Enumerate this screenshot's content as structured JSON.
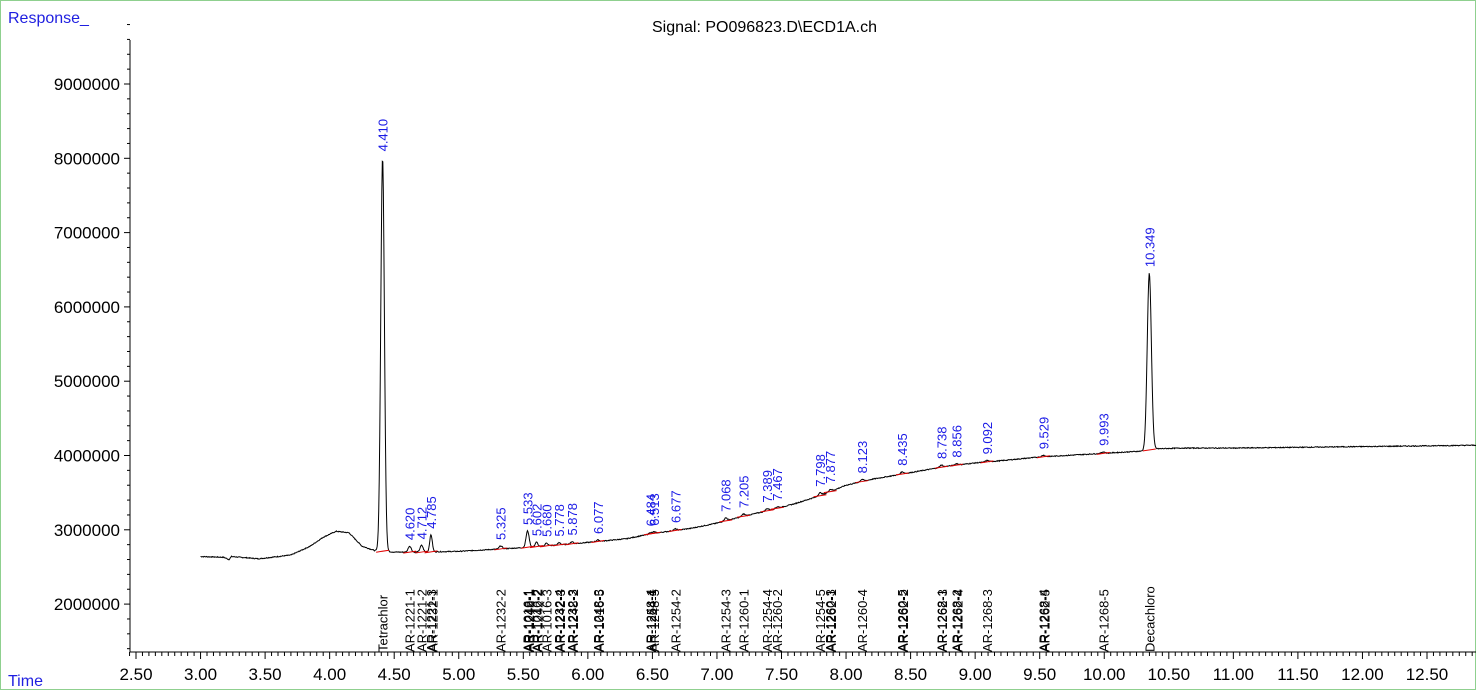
{
  "header": {
    "response_label": "Response_",
    "signal_label": "Signal: PO096823.D\\ECD1A.ch",
    "time_label": "Time"
  },
  "colors": {
    "trace": "#000000",
    "peak_label": "#1a1ae6",
    "baseline_marker": "#e00000",
    "axis_label": "#1f1fe0",
    "frame": "#8fd08f"
  },
  "chart_data": {
    "type": "line",
    "title": "Signal: PO096823.D\\ECD1A.ch",
    "xlabel": "Time",
    "ylabel": "Response_",
    "xlim": [
      2.4,
      12.95
    ],
    "ylim": [
      1320000,
      9900000
    ],
    "x_ticks": [
      "2.50",
      "3.00",
      "3.50",
      "4.00",
      "4.50",
      "5.00",
      "5.50",
      "6.00",
      "6.50",
      "7.00",
      "7.50",
      "8.00",
      "8.50",
      "9.00",
      "9.50",
      "10.00",
      "10.50",
      "11.00",
      "11.50",
      "12.00",
      "12.50"
    ],
    "y_ticks": [
      "2000000",
      "3000000",
      "4000000",
      "5000000",
      "6000000",
      "7000000",
      "8000000",
      "9000000"
    ],
    "baseline_points": [
      [
        3.0,
        2640000
      ],
      [
        3.18,
        2630000
      ],
      [
        3.22,
        2600000
      ],
      [
        3.24,
        2640000
      ],
      [
        3.45,
        2610000
      ],
      [
        3.7,
        2660000
      ],
      [
        3.85,
        2780000
      ],
      [
        3.95,
        2900000
      ],
      [
        4.05,
        2980000
      ],
      [
        4.15,
        2960000
      ],
      [
        4.25,
        2780000
      ],
      [
        4.35,
        2720000
      ],
      [
        4.5,
        2700000
      ],
      [
        4.7,
        2700000
      ],
      [
        5.0,
        2710000
      ],
      [
        5.3,
        2740000
      ],
      [
        5.5,
        2760000
      ],
      [
        5.8,
        2800000
      ],
      [
        6.0,
        2830000
      ],
      [
        6.3,
        2880000
      ],
      [
        6.5,
        2950000
      ],
      [
        6.8,
        3020000
      ],
      [
        7.0,
        3090000
      ],
      [
        7.2,
        3180000
      ],
      [
        7.4,
        3260000
      ],
      [
        7.6,
        3350000
      ],
      [
        7.8,
        3460000
      ],
      [
        8.0,
        3600000
      ],
      [
        8.2,
        3680000
      ],
      [
        8.4,
        3740000
      ],
      [
        8.6,
        3800000
      ],
      [
        8.8,
        3860000
      ],
      [
        9.0,
        3900000
      ],
      [
        9.2,
        3930000
      ],
      [
        9.5,
        3980000
      ],
      [
        9.8,
        4010000
      ],
      [
        10.0,
        4030000
      ],
      [
        10.3,
        4060000
      ],
      [
        10.4,
        4090000
      ],
      [
        10.6,
        4100000
      ],
      [
        11.0,
        4100000
      ],
      [
        11.5,
        4110000
      ],
      [
        12.0,
        4120000
      ],
      [
        12.5,
        4130000
      ],
      [
        12.95,
        4140000
      ]
    ],
    "peaks": [
      {
        "x": 4.41,
        "label": "4.410",
        "height": 5300000,
        "width": 0.014
      },
      {
        "x": 4.62,
        "label": "4.620",
        "height": 80000,
        "width": 0.012
      },
      {
        "x": 4.712,
        "label": "4.712",
        "height": 90000,
        "width": 0.012
      },
      {
        "x": 4.785,
        "label": "4.785",
        "height": 230000,
        "width": 0.01
      },
      {
        "x": 5.325,
        "label": "5.325",
        "height": 40000,
        "width": 0.012
      },
      {
        "x": 5.533,
        "label": "5.533",
        "height": 220000,
        "width": 0.012
      },
      {
        "x": 5.602,
        "label": "5.602",
        "height": 60000,
        "width": 0.01
      },
      {
        "x": 5.68,
        "label": "5.680",
        "height": 40000,
        "width": 0.01
      },
      {
        "x": 5.778,
        "label": "5.778",
        "height": 30000,
        "width": 0.01
      },
      {
        "x": 5.878,
        "label": "5.878",
        "height": 30000,
        "width": 0.01
      },
      {
        "x": 6.077,
        "label": "6.077",
        "height": 20000,
        "width": 0.012
      },
      {
        "x": 6.484,
        "label": "6.484",
        "height": 20000,
        "width": 0.01
      },
      {
        "x": 6.513,
        "label": "6.513",
        "height": 20000,
        "width": 0.01
      },
      {
        "x": 6.677,
        "label": "6.677",
        "height": 20000,
        "width": 0.012
      },
      {
        "x": 7.068,
        "label": "7.068",
        "height": 40000,
        "width": 0.012
      },
      {
        "x": 7.205,
        "label": "7.205",
        "height": 30000,
        "width": 0.012
      },
      {
        "x": 7.389,
        "label": "7.389",
        "height": 30000,
        "width": 0.012
      },
      {
        "x": 7.467,
        "label": "7.467",
        "height": 20000,
        "width": 0.012
      },
      {
        "x": 7.798,
        "label": "7.798",
        "height": 40000,
        "width": 0.012
      },
      {
        "x": 7.877,
        "label": "7.877",
        "height": 30000,
        "width": 0.012
      },
      {
        "x": 8.123,
        "label": "8.123",
        "height": 30000,
        "width": 0.012
      },
      {
        "x": 8.435,
        "label": "8.435",
        "height": 30000,
        "width": 0.012
      },
      {
        "x": 8.738,
        "label": "8.738",
        "height": 30000,
        "width": 0.012
      },
      {
        "x": 8.856,
        "label": "8.856",
        "height": 20000,
        "width": 0.012
      },
      {
        "x": 9.092,
        "label": "9.092",
        "height": 20000,
        "width": 0.012
      },
      {
        "x": 9.529,
        "label": "9.529",
        "height": 20000,
        "width": 0.012
      },
      {
        "x": 9.993,
        "label": "9.993",
        "height": 20000,
        "width": 0.012
      },
      {
        "x": 10.349,
        "label": "10.349",
        "height": 2380000,
        "width": 0.016
      }
    ],
    "compound_labels": [
      {
        "x": 4.41,
        "label": "Tetrachlor"
      },
      {
        "x": 4.62,
        "label": "AR-1221-1"
      },
      {
        "x": 4.712,
        "label": "AR-1221-2"
      },
      {
        "x": 4.785,
        "label": "AR-1221-3"
      },
      {
        "x": 4.795,
        "label": "AR-1232-1"
      },
      {
        "x": 5.325,
        "label": "AR-1232-2"
      },
      {
        "x": 5.533,
        "label": "AR-1016-1"
      },
      {
        "x": 5.54,
        "label": "AR-1242-1"
      },
      {
        "x": 5.545,
        "label": "AR-1248-1"
      },
      {
        "x": 5.602,
        "label": "AR-1016-2"
      },
      {
        "x": 5.61,
        "label": "AR-1242-2"
      },
      {
        "x": 5.68,
        "label": "AR-1016-3"
      },
      {
        "x": 5.778,
        "label": "AR-1232-4"
      },
      {
        "x": 5.785,
        "label": "AR-1242-3"
      },
      {
        "x": 5.878,
        "label": "AR-1232-3"
      },
      {
        "x": 5.885,
        "label": "AR-1248-2"
      },
      {
        "x": 6.077,
        "label": "AR-1248-3"
      },
      {
        "x": 6.085,
        "label": "AR-1016-5"
      },
      {
        "x": 6.484,
        "label": "AR-1248-4"
      },
      {
        "x": 6.49,
        "label": "AR-1254-1"
      },
      {
        "x": 6.513,
        "label": "AR-1248-5"
      },
      {
        "x": 6.677,
        "label": "AR-1254-2"
      },
      {
        "x": 7.068,
        "label": "AR-1254-3"
      },
      {
        "x": 7.205,
        "label": "AR-1260-1"
      },
      {
        "x": 7.389,
        "label": "AR-1254-4"
      },
      {
        "x": 7.467,
        "label": "AR-1260-2"
      },
      {
        "x": 7.798,
        "label": "AR-1254-5"
      },
      {
        "x": 7.877,
        "label": "AR-1260-3"
      },
      {
        "x": 7.884,
        "label": "AR-1262-1"
      },
      {
        "x": 8.123,
        "label": "AR-1260-4"
      },
      {
        "x": 8.435,
        "label": "AR-1260-5"
      },
      {
        "x": 8.442,
        "label": "AR-1262-2"
      },
      {
        "x": 8.738,
        "label": "AR-1268-1"
      },
      {
        "x": 8.745,
        "label": "AR-1262-3"
      },
      {
        "x": 8.856,
        "label": "AR-1268-2"
      },
      {
        "x": 8.862,
        "label": "AR-1262-4"
      },
      {
        "x": 9.092,
        "label": "AR-1268-3"
      },
      {
        "x": 9.529,
        "label": "AR-1268-4"
      },
      {
        "x": 9.536,
        "label": "AR-1262-5"
      },
      {
        "x": 9.993,
        "label": "AR-1268-5"
      },
      {
        "x": 10.349,
        "label": "Decachloro"
      }
    ]
  }
}
